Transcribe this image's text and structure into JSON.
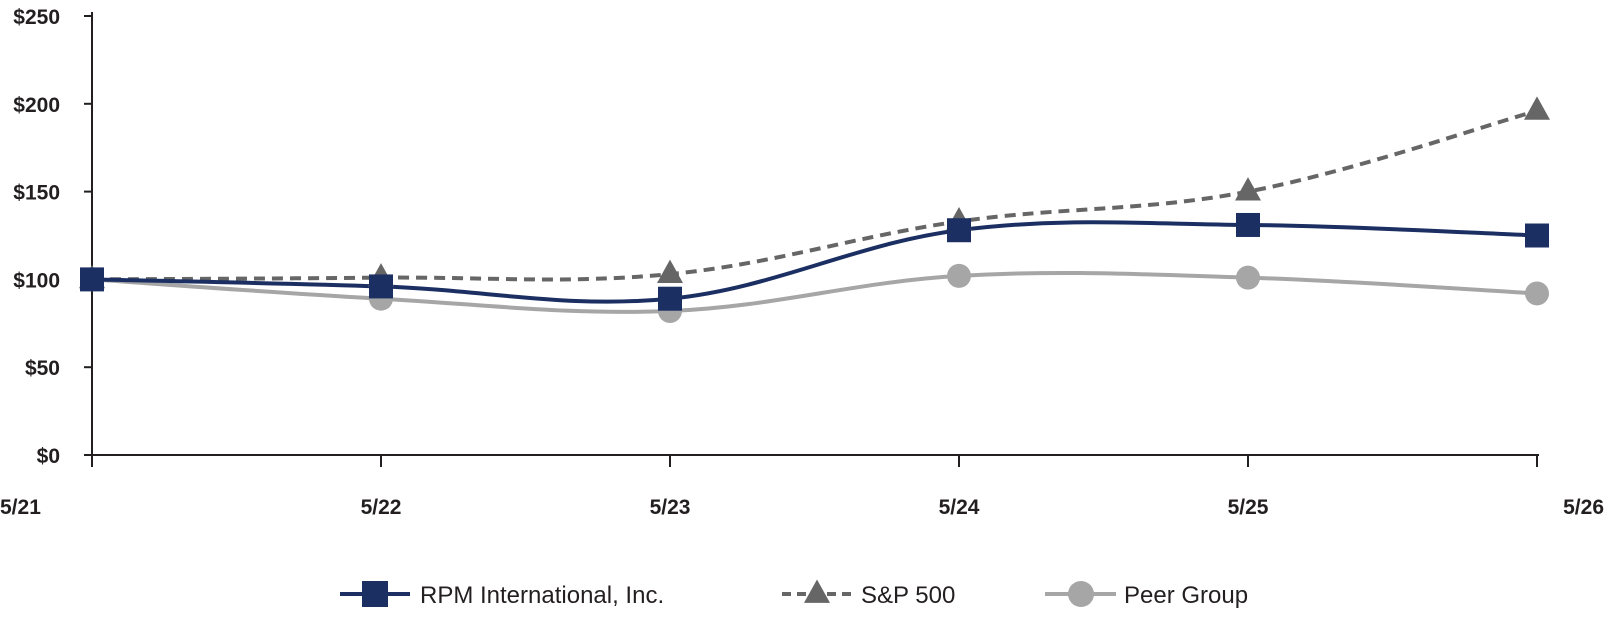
{
  "chart_data": {
    "type": "line",
    "categories": [
      "5/21",
      "5/22",
      "5/23",
      "5/24",
      "5/25",
      "5/26"
    ],
    "ylim": [
      0,
      250
    ],
    "yticks": [
      "$0",
      "$50",
      "$100",
      "$150",
      "$200",
      "$250"
    ],
    "ytick_values": [
      0,
      50,
      100,
      150,
      200,
      250
    ],
    "grid": false,
    "legend_position": "bottom",
    "series": [
      {
        "name": "RPM International, Inc.",
        "values": [
          100,
          96,
          89,
          128,
          131,
          125
        ],
        "color": "#1b2f63",
        "line_style": "solid",
        "marker": "square-icon"
      },
      {
        "name": "S&P 500",
        "values": [
          100,
          101,
          103,
          133,
          150,
          196
        ],
        "color": "#666666",
        "line_style": "dashed",
        "marker": "triangle-icon"
      },
      {
        "name": "Peer Group",
        "values": [
          100,
          89,
          82,
          102,
          101,
          92
        ],
        "color": "#a6a6a7",
        "line_style": "solid",
        "marker": "circle-icon"
      }
    ]
  }
}
